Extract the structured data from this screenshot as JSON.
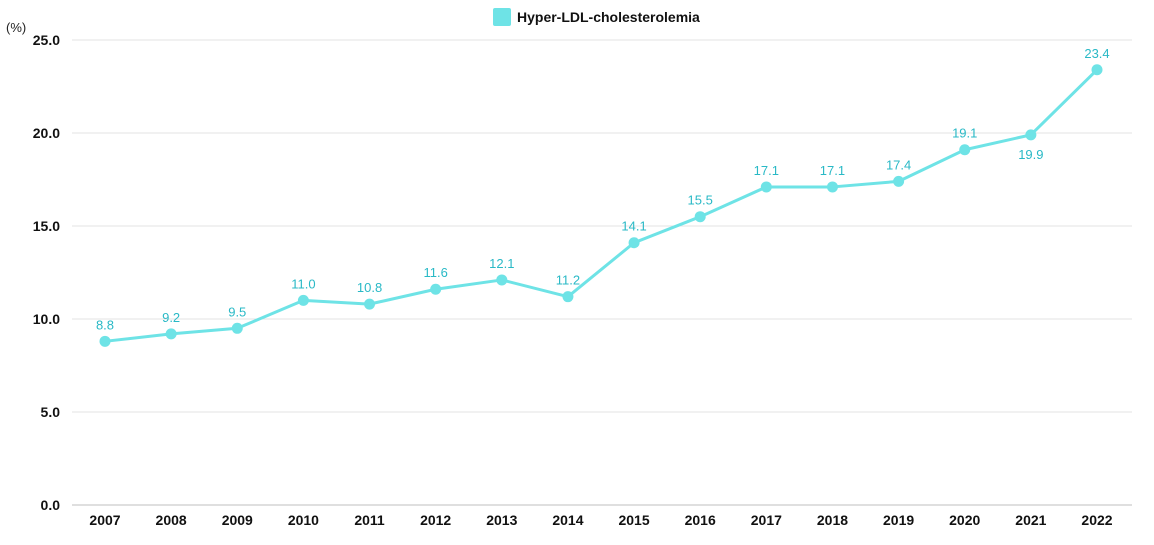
{
  "chart_data": {
    "type": "line",
    "unit_label": "(%)",
    "categories": [
      "2007",
      "2008",
      "2009",
      "2010",
      "2011",
      "2012",
      "2013",
      "2014",
      "2015",
      "2016",
      "2017",
      "2018",
      "2019",
      "2020",
      "2021",
      "2022"
    ],
    "series": [
      {
        "name": "Hyper-LDL-cholesterolemia",
        "values": [
          8.8,
          9.2,
          9.5,
          11.0,
          10.8,
          11.6,
          12.1,
          11.2,
          14.1,
          15.5,
          17.1,
          17.1,
          17.4,
          19.1,
          19.9,
          23.4
        ],
        "color": "#6ee3e6",
        "label_color": "#29b9c6"
      }
    ],
    "data_labels": [
      "8.8",
      "9.2",
      "9.5",
      "11.0",
      "10.8",
      "11.6",
      "12.1",
      "11.2",
      "14.1",
      "15.5",
      "17.1",
      "17.1",
      "17.4",
      "19.1",
      "19.9",
      "23.4"
    ],
    "ylim": [
      0,
      25
    ],
    "yticks": [
      "0.0",
      "5.0",
      "10.0",
      "15.0",
      "20.0",
      "25.0"
    ],
    "ytick_values": [
      0,
      5,
      10,
      15,
      20,
      25
    ],
    "grid": true,
    "legend_position": "top-center"
  }
}
